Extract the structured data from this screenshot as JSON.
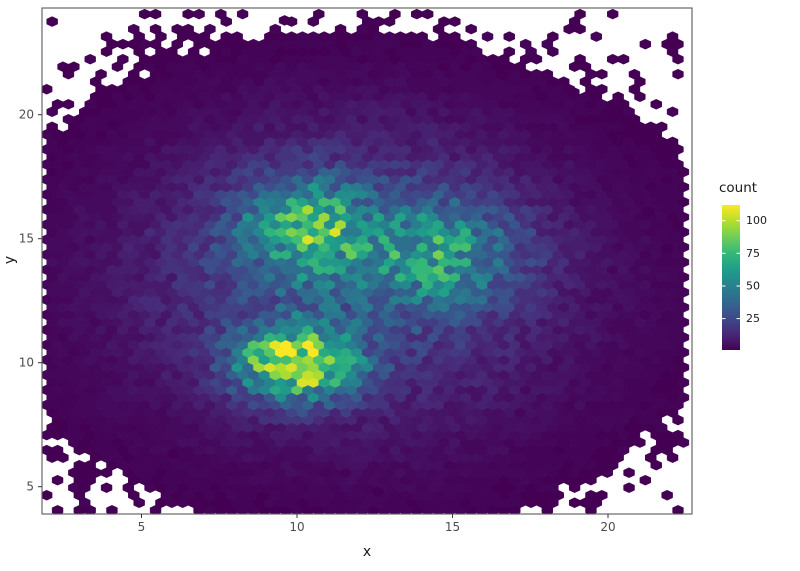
{
  "chart_data": {
    "type": "hexbin",
    "title": "",
    "xlabel": "x",
    "ylabel": "y",
    "x_ticks": [
      5,
      10,
      15,
      20
    ],
    "y_ticks": [
      5,
      10,
      15,
      20
    ],
    "x_domain": [
      1.8,
      22.7
    ],
    "y_domain": [
      3.9,
      24.3
    ],
    "binwidth": 0.35,
    "max_count": 112,
    "legend": {
      "title": "count",
      "breaks": [
        100,
        75,
        50,
        25
      ]
    },
    "colormap": {
      "name": "viridis",
      "stops": [
        "#440154",
        "#482878",
        "#3e4989",
        "#31688e",
        "#26828e",
        "#1f9e89",
        "#35b779",
        "#6ece58",
        "#b5de2b",
        "#fde725"
      ]
    },
    "clusters": [
      {
        "name": "bottom-hotspot",
        "cx": 10.0,
        "cy": 10.0,
        "sx": 1.3,
        "sy": 1.0,
        "peak": 95
      },
      {
        "name": "upper-left-hotspot",
        "cx": 10.3,
        "cy": 15.5,
        "sx": 1.4,
        "sy": 1.3,
        "peak": 55
      },
      {
        "name": "upper-right-hotspot",
        "cx": 14.6,
        "cy": 14.4,
        "sx": 1.7,
        "sy": 1.4,
        "peak": 44
      },
      {
        "name": "broad-background",
        "cx": 11.5,
        "cy": 14.0,
        "sx": 4.2,
        "sy": 3.6,
        "peak": 22
      },
      {
        "name": "diffuse-halo",
        "cx": 12.0,
        "cy": 12.5,
        "sx": 5.6,
        "sy": 4.6,
        "peak": 8
      }
    ],
    "outliers": [
      [
        9.6,
        23.8
      ],
      [
        2.4,
        7.5
      ],
      [
        8.9,
        4.6
      ],
      [
        12.6,
        4.8
      ],
      [
        21.9,
        14.6
      ],
      [
        21.3,
        16.1
      ],
      [
        4.1,
        19.6
      ],
      [
        16.6,
        21.6
      ],
      [
        18.9,
        20.9
      ],
      [
        6.0,
        6.3
      ]
    ],
    "theme": {
      "panel_border": "#5a5a5a",
      "tick_color": "#333333",
      "tick_label_color": "#4d4d4d",
      "text_color": "#1a1a1a",
      "background": "#ffffff"
    }
  }
}
